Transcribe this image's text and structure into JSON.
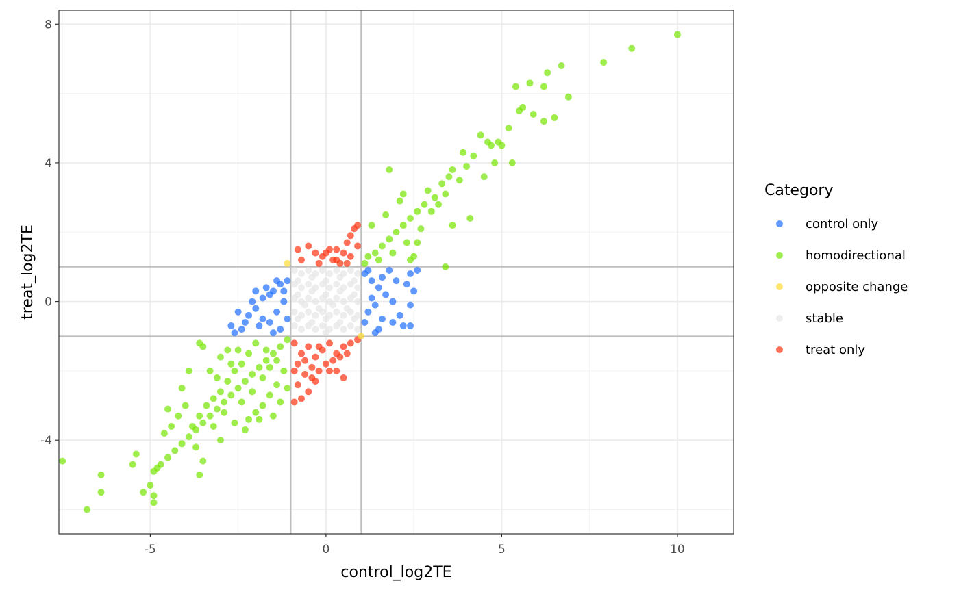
{
  "chart_data": {
    "type": "scatter",
    "title": "",
    "xlabel": "control_log2TE",
    "ylabel": "treat_log2TE",
    "xlim": [
      -7.6,
      11.6
    ],
    "ylim": [
      -6.7,
      8.4
    ],
    "x_ticks": [
      -5,
      0,
      5,
      10
    ],
    "x_tick_labels": [
      "-5",
      "0",
      "5",
      "10"
    ],
    "y_ticks": [
      -4,
      0,
      4,
      8
    ],
    "y_tick_labels": [
      "-4",
      "0",
      "4",
      "8"
    ],
    "threshold_lines": {
      "x": [
        -1,
        1
      ],
      "y": [
        -1,
        1
      ]
    },
    "grid": true,
    "legend": {
      "title": "Category",
      "position": "right"
    },
    "point_alpha": 0.7,
    "series": [
      {
        "name": "control only",
        "color": "#1E6EFF",
        "points": [
          [
            -1.3,
            0.5
          ],
          [
            -1.5,
            0.3
          ],
          [
            -1.8,
            0.1
          ],
          [
            -2.0,
            -0.2
          ],
          [
            -2.2,
            -0.4
          ],
          [
            -1.6,
            -0.6
          ],
          [
            -1.2,
            0.0
          ],
          [
            -1.4,
            -0.3
          ],
          [
            -1.9,
            -0.7
          ],
          [
            -2.4,
            -0.8
          ],
          [
            -2.6,
            -0.9
          ],
          [
            -1.1,
            0.6
          ],
          [
            -1.7,
            0.4
          ],
          [
            -2.1,
            0.0
          ],
          [
            -1.3,
            -0.8
          ],
          [
            -2.5,
            -0.3
          ],
          [
            -1.5,
            -0.9
          ],
          [
            -1.8,
            -0.5
          ],
          [
            -1.2,
            0.3
          ],
          [
            -2.3,
            -0.6
          ],
          [
            -1.6,
            0.2
          ],
          [
            -1.4,
            0.6
          ],
          [
            -2.0,
            0.3
          ],
          [
            -1.1,
            -0.5
          ],
          [
            -2.7,
            -0.7
          ],
          [
            1.1,
            0.8
          ],
          [
            1.3,
            0.6
          ],
          [
            1.5,
            0.4
          ],
          [
            1.7,
            0.2
          ],
          [
            1.4,
            -0.1
          ],
          [
            1.2,
            -0.3
          ],
          [
            1.6,
            -0.5
          ],
          [
            1.9,
            -0.6
          ],
          [
            2.2,
            -0.7
          ],
          [
            2.4,
            0.8
          ],
          [
            2.3,
            0.5
          ],
          [
            2.4,
            -0.1
          ],
          [
            2.4,
            -0.7
          ],
          [
            1.8,
            0.9
          ],
          [
            2.0,
            0.6
          ],
          [
            1.3,
            0.1
          ],
          [
            1.1,
            -0.6
          ],
          [
            1.5,
            -0.8
          ],
          [
            2.6,
            0.9
          ],
          [
            2.5,
            0.3
          ],
          [
            1.6,
            0.7
          ],
          [
            1.2,
            0.9
          ],
          [
            1.9,
            0.0
          ],
          [
            2.1,
            -0.4
          ],
          [
            1.4,
            -0.9
          ]
        ]
      },
      {
        "name": "homodirectional",
        "color": "#76E600",
        "points": [
          [
            10.0,
            7.7
          ],
          [
            8.7,
            7.3
          ],
          [
            7.9,
            6.9
          ],
          [
            6.9,
            5.9
          ],
          [
            6.7,
            6.8
          ],
          [
            6.3,
            6.6
          ],
          [
            6.2,
            6.2
          ],
          [
            5.8,
            6.3
          ],
          [
            5.4,
            6.2
          ],
          [
            6.2,
            5.2
          ],
          [
            5.9,
            5.4
          ],
          [
            5.5,
            5.5
          ],
          [
            5.2,
            5.0
          ],
          [
            4.9,
            4.6
          ],
          [
            4.7,
            4.5
          ],
          [
            4.4,
            4.8
          ],
          [
            4.2,
            4.2
          ],
          [
            4.5,
            3.6
          ],
          [
            5.0,
            4.5
          ],
          [
            5.3,
            4.0
          ],
          [
            4.8,
            4.0
          ],
          [
            3.9,
            4.3
          ],
          [
            3.6,
            3.8
          ],
          [
            3.3,
            3.4
          ],
          [
            3.1,
            3.0
          ],
          [
            2.8,
            2.8
          ],
          [
            2.6,
            2.6
          ],
          [
            2.4,
            2.4
          ],
          [
            2.2,
            2.2
          ],
          [
            2.0,
            2.0
          ],
          [
            1.8,
            1.8
          ],
          [
            1.6,
            1.6
          ],
          [
            1.4,
            1.4
          ],
          [
            1.2,
            1.3
          ],
          [
            1.1,
            1.1
          ],
          [
            1.5,
            1.2
          ],
          [
            1.9,
            1.4
          ],
          [
            2.3,
            1.7
          ],
          [
            2.7,
            2.1
          ],
          [
            3.0,
            2.6
          ],
          [
            3.4,
            3.1
          ],
          [
            3.8,
            3.5
          ],
          [
            4.1,
            2.4
          ],
          [
            3.4,
            1.0
          ],
          [
            2.5,
            1.3
          ],
          [
            1.8,
            3.8
          ],
          [
            2.1,
            2.9
          ],
          [
            2.9,
            3.2
          ],
          [
            3.6,
            2.2
          ],
          [
            1.3,
            2.2
          ],
          [
            1.7,
            2.5
          ],
          [
            2.4,
            1.2
          ],
          [
            3.2,
            2.8
          ],
          [
            4.0,
            3.9
          ],
          [
            4.6,
            4.6
          ],
          [
            5.6,
            5.6
          ],
          [
            6.5,
            5.3
          ],
          [
            3.5,
            3.6
          ],
          [
            2.2,
            3.1
          ],
          [
            2.6,
            1.7
          ],
          [
            -1.1,
            -1.1
          ],
          [
            -1.3,
            -1.3
          ],
          [
            -1.5,
            -1.5
          ],
          [
            -1.7,
            -1.7
          ],
          [
            -1.9,
            -1.9
          ],
          [
            -2.1,
            -2.1
          ],
          [
            -2.3,
            -2.3
          ],
          [
            -2.5,
            -2.5
          ],
          [
            -2.7,
            -2.7
          ],
          [
            -2.9,
            -2.9
          ],
          [
            -3.1,
            -3.1
          ],
          [
            -3.3,
            -3.3
          ],
          [
            -3.5,
            -3.5
          ],
          [
            -3.7,
            -3.7
          ],
          [
            -3.9,
            -3.9
          ],
          [
            -4.1,
            -4.1
          ],
          [
            -4.3,
            -4.3
          ],
          [
            -4.5,
            -4.5
          ],
          [
            -4.7,
            -4.7
          ],
          [
            -4.9,
            -4.9
          ],
          [
            -1.2,
            -2.0
          ],
          [
            -1.4,
            -2.4
          ],
          [
            -1.6,
            -2.7
          ],
          [
            -1.8,
            -3.0
          ],
          [
            -2.0,
            -3.2
          ],
          [
            -2.2,
            -1.5
          ],
          [
            -2.4,
            -1.8
          ],
          [
            -2.6,
            -2.0
          ],
          [
            -2.8,
            -2.3
          ],
          [
            -3.0,
            -2.6
          ],
          [
            -3.2,
            -2.8
          ],
          [
            -3.4,
            -3.0
          ],
          [
            -3.6,
            -3.3
          ],
          [
            -3.8,
            -3.6
          ],
          [
            -2.0,
            -1.2
          ],
          [
            -2.5,
            -1.4
          ],
          [
            -3.0,
            -1.6
          ],
          [
            -3.5,
            -1.3
          ],
          [
            -3.3,
            -2.0
          ],
          [
            -2.9,
            -3.2
          ],
          [
            -2.6,
            -3.5
          ],
          [
            -2.3,
            -3.7
          ],
          [
            -1.9,
            -3.4
          ],
          [
            -1.5,
            -3.3
          ],
          [
            -1.3,
            -2.9
          ],
          [
            -1.1,
            -2.5
          ],
          [
            -1.7,
            -1.4
          ],
          [
            -2.1,
            -2.6
          ],
          [
            -2.7,
            -1.8
          ],
          [
            -3.1,
            -2.2
          ],
          [
            -4.0,
            -3.0
          ],
          [
            -4.2,
            -3.3
          ],
          [
            -4.4,
            -3.6
          ],
          [
            -4.6,
            -3.8
          ],
          [
            -3.7,
            -4.2
          ],
          [
            -3.5,
            -4.6
          ],
          [
            -3.6,
            -5.0
          ],
          [
            -4.8,
            -4.8
          ],
          [
            -5.0,
            -5.3
          ],
          [
            -5.4,
            -4.4
          ],
          [
            -5.2,
            -5.5
          ],
          [
            -5.5,
            -4.7
          ],
          [
            -6.4,
            -5.0
          ],
          [
            -6.4,
            -5.5
          ],
          [
            -4.9,
            -5.6
          ],
          [
            -4.9,
            -5.8
          ],
          [
            -6.8,
            -6.0
          ],
          [
            -7.5,
            -4.6
          ],
          [
            -3.0,
            -4.0
          ],
          [
            -2.2,
            -3.4
          ],
          [
            -4.1,
            -2.5
          ],
          [
            -3.9,
            -2.0
          ],
          [
            -3.6,
            -1.2
          ],
          [
            -1.6,
            -1.9
          ],
          [
            -2.4,
            -2.9
          ],
          [
            -3.2,
            -3.6
          ],
          [
            -4.5,
            -3.1
          ],
          [
            -2.8,
            -1.4
          ],
          [
            -1.4,
            -1.7
          ],
          [
            -1.8,
            -2.2
          ]
        ]
      },
      {
        "name": "opposite change",
        "color": "#FFDB2E",
        "points": [
          [
            -1.1,
            1.1
          ],
          [
            1.0,
            -1.0
          ]
        ]
      },
      {
        "name": "stable",
        "color": "#E6E6E6",
        "points": [
          [
            -0.9,
            0.9
          ],
          [
            -0.7,
            0.8
          ],
          [
            -0.5,
            0.9
          ],
          [
            -0.3,
            0.8
          ],
          [
            -0.1,
            0.9
          ],
          [
            0.1,
            0.8
          ],
          [
            0.3,
            0.9
          ],
          [
            0.5,
            0.8
          ],
          [
            0.7,
            0.9
          ],
          [
            0.9,
            0.8
          ],
          [
            -0.9,
            0.5
          ],
          [
            -0.7,
            0.4
          ],
          [
            -0.5,
            0.5
          ],
          [
            -0.3,
            0.4
          ],
          [
            -0.1,
            0.5
          ],
          [
            0.1,
            0.4
          ],
          [
            0.3,
            0.5
          ],
          [
            0.5,
            0.4
          ],
          [
            0.7,
            0.5
          ],
          [
            0.9,
            0.4
          ],
          [
            -0.9,
            0.1
          ],
          [
            -0.7,
            0.0
          ],
          [
            -0.5,
            0.1
          ],
          [
            -0.3,
            0.0
          ],
          [
            -0.1,
            0.1
          ],
          [
            0.1,
            0.0
          ],
          [
            0.3,
            0.1
          ],
          [
            0.5,
            0.0
          ],
          [
            0.7,
            0.1
          ],
          [
            0.9,
            0.0
          ],
          [
            -0.9,
            -0.3
          ],
          [
            -0.7,
            -0.4
          ],
          [
            -0.5,
            -0.3
          ],
          [
            -0.3,
            -0.4
          ],
          [
            -0.1,
            -0.3
          ],
          [
            0.1,
            -0.4
          ],
          [
            0.3,
            -0.3
          ],
          [
            0.5,
            -0.4
          ],
          [
            0.7,
            -0.3
          ],
          [
            0.9,
            -0.4
          ],
          [
            -0.9,
            -0.7
          ],
          [
            -0.7,
            -0.8
          ],
          [
            -0.5,
            -0.7
          ],
          [
            -0.3,
            -0.8
          ],
          [
            -0.1,
            -0.7
          ],
          [
            0.1,
            -0.8
          ],
          [
            0.3,
            -0.7
          ],
          [
            0.5,
            -0.8
          ],
          [
            0.7,
            -0.7
          ],
          [
            0.9,
            -0.8
          ],
          [
            -0.8,
            0.2
          ],
          [
            -0.6,
            -0.1
          ],
          [
            -0.4,
            0.3
          ],
          [
            -0.2,
            -0.2
          ],
          [
            0.0,
            0.2
          ],
          [
            0.2,
            -0.1
          ],
          [
            0.4,
            0.3
          ],
          [
            0.6,
            -0.2
          ],
          [
            0.8,
            0.2
          ],
          [
            0.0,
            -0.5
          ],
          [
            -0.8,
            0.6
          ],
          [
            -0.4,
            0.7
          ],
          [
            0.0,
            0.6
          ],
          [
            0.4,
            0.7
          ],
          [
            0.8,
            0.6
          ],
          [
            -0.8,
            -0.5
          ],
          [
            -0.4,
            -0.6
          ],
          [
            0.0,
            -0.9
          ],
          [
            0.4,
            -0.6
          ],
          [
            0.8,
            -0.5
          ]
        ]
      },
      {
        "name": "treat only",
        "color": "#FF3010",
        "points": [
          [
            -0.7,
            1.2
          ],
          [
            -0.5,
            1.6
          ],
          [
            -0.3,
            1.4
          ],
          [
            -0.1,
            1.3
          ],
          [
            0.1,
            1.5
          ],
          [
            0.3,
            1.2
          ],
          [
            0.5,
            1.4
          ],
          [
            0.7,
            1.3
          ],
          [
            0.8,
            2.1
          ],
          [
            0.9,
            2.2
          ],
          [
            0.6,
            1.7
          ],
          [
            0.4,
            1.1
          ],
          [
            0.2,
            1.2
          ],
          [
            -0.2,
            1.1
          ],
          [
            0.0,
            1.4
          ],
          [
            0.6,
            1.1
          ],
          [
            -0.8,
            1.5
          ],
          [
            0.9,
            1.6
          ],
          [
            0.7,
            1.9
          ],
          [
            0.3,
            1.5
          ],
          [
            -0.9,
            -1.2
          ],
          [
            -0.7,
            -1.5
          ],
          [
            -0.5,
            -1.3
          ],
          [
            -0.3,
            -1.6
          ],
          [
            -0.1,
            -1.4
          ],
          [
            0.1,
            -1.2
          ],
          [
            0.3,
            -1.5
          ],
          [
            0.5,
            -1.3
          ],
          [
            0.7,
            -1.2
          ],
          [
            0.9,
            -1.1
          ],
          [
            -0.9,
            -2.0
          ],
          [
            -0.8,
            -2.4
          ],
          [
            -0.7,
            -2.8
          ],
          [
            -0.9,
            -2.9
          ],
          [
            -0.6,
            -2.1
          ],
          [
            -0.4,
            -1.9
          ],
          [
            -0.2,
            -2.0
          ],
          [
            0.0,
            -1.8
          ],
          [
            0.2,
            -1.7
          ],
          [
            0.5,
            -2.2
          ],
          [
            -0.5,
            -2.6
          ],
          [
            -0.3,
            -2.3
          ],
          [
            0.1,
            -2.0
          ],
          [
            -0.6,
            -1.7
          ],
          [
            0.4,
            -1.6
          ],
          [
            -0.8,
            -1.8
          ],
          [
            -0.4,
            -2.2
          ],
          [
            0.3,
            -2.0
          ],
          [
            0.6,
            -1.5
          ],
          [
            -0.2,
            -1.3
          ]
        ]
      }
    ]
  }
}
